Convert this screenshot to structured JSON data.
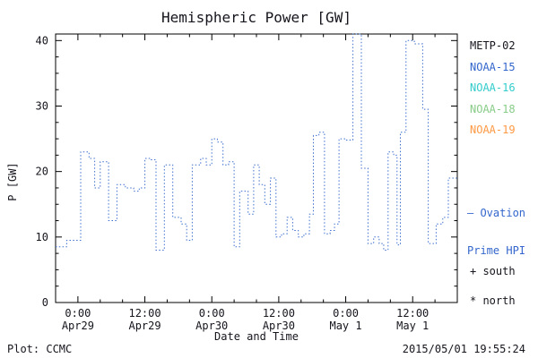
{
  "window": {
    "background": "#ffffff",
    "frame_color": "#000000"
  },
  "chart_data": {
    "type": "line",
    "subtype": "dotted-step",
    "title": "Hemispheric Power [GW]",
    "xlabel": "Date and Time",
    "ylabel": "P [GW]",
    "ylim": [
      0,
      41
    ],
    "xlim_hours": [
      0,
      72
    ],
    "grid": false,
    "line_color": "#3f6fce",
    "y_ticks": [
      0,
      10,
      20,
      30,
      40
    ],
    "y_minor_step": 2.5,
    "x_minor_step": 4,
    "x_major_ticks": [
      {
        "t": 4,
        "time": "0:00",
        "date": "Apr29"
      },
      {
        "t": 16,
        "time": "12:00",
        "date": "Apr29"
      },
      {
        "t": 28,
        "time": "0:00",
        "date": "Apr30"
      },
      {
        "t": 40,
        "time": "12:00",
        "date": "Apr30"
      },
      {
        "t": 52,
        "time": "0:00",
        "date": "May 1"
      },
      {
        "t": 64,
        "time": "12:00",
        "date": "May 1"
      }
    ],
    "series": [
      {
        "name": "Ovation Prime HPI",
        "units": "GW",
        "steps_t_hours_value_gw": [
          [
            0,
            8.5
          ],
          [
            2,
            9.5
          ],
          [
            4.5,
            23
          ],
          [
            6,
            22
          ],
          [
            7,
            17.5
          ],
          [
            8,
            21.5
          ],
          [
            9.5,
            12.5
          ],
          [
            11,
            18
          ],
          [
            12.5,
            17.5
          ],
          [
            14,
            17
          ],
          [
            15,
            17.5
          ],
          [
            16,
            22
          ],
          [
            17,
            21.8
          ],
          [
            18,
            8
          ],
          [
            19.5,
            21
          ],
          [
            21,
            13
          ],
          [
            22.5,
            12
          ],
          [
            23.5,
            9.5
          ],
          [
            24.5,
            21
          ],
          [
            26,
            22
          ],
          [
            27,
            21
          ],
          [
            28,
            25
          ],
          [
            29,
            24.5
          ],
          [
            30,
            21
          ],
          [
            31,
            21.5
          ],
          [
            32,
            8.5
          ],
          [
            33,
            17
          ],
          [
            34.5,
            13.5
          ],
          [
            35.5,
            21
          ],
          [
            36.5,
            18
          ],
          [
            37.5,
            15
          ],
          [
            38.5,
            19
          ],
          [
            39.5,
            10
          ],
          [
            40.5,
            10.5
          ],
          [
            41.5,
            13
          ],
          [
            42.5,
            11
          ],
          [
            43.5,
            10
          ],
          [
            44.5,
            10.5
          ],
          [
            45.5,
            13.5
          ],
          [
            46.2,
            25.5
          ],
          [
            47.2,
            26
          ],
          [
            48.2,
            10.5
          ],
          [
            49.2,
            11
          ],
          [
            50,
            12
          ],
          [
            50.8,
            25
          ],
          [
            52,
            24.8
          ],
          [
            53.3,
            41
          ],
          [
            54.8,
            20.5
          ],
          [
            56,
            9
          ],
          [
            57,
            10
          ],
          [
            58,
            9
          ],
          [
            58.8,
            8
          ],
          [
            59.6,
            23
          ],
          [
            60.6,
            22.5
          ],
          [
            61.2,
            8.8
          ],
          [
            61.8,
            26
          ],
          [
            62.8,
            40
          ],
          [
            64.3,
            39.5
          ],
          [
            65.8,
            29.5
          ],
          [
            66.8,
            9
          ],
          [
            68.2,
            12
          ],
          [
            69.4,
            13
          ],
          [
            70.4,
            19
          ]
        ]
      }
    ]
  },
  "legend": {
    "satellites": [
      {
        "label": "METP-02",
        "color": "#15151d"
      },
      {
        "label": "NOAA-15",
        "color": "#3366cc"
      },
      {
        "label": "NOAA-16",
        "color": "#33cccc"
      },
      {
        "label": "NOAA-18",
        "color": "#88cc88"
      },
      {
        "label": "NOAA-19",
        "color": "#ff9944"
      }
    ],
    "line_legend": {
      "color": "#3366cc",
      "line1": "— Ovation",
      "line2": "Prime HPI"
    },
    "markers": [
      {
        "symbol": "+",
        "label": "south"
      },
      {
        "symbol": "*",
        "label": "north"
      }
    ]
  },
  "footer": {
    "left": "Plot: CCMC",
    "right": "2015/05/01 19:55:24"
  }
}
